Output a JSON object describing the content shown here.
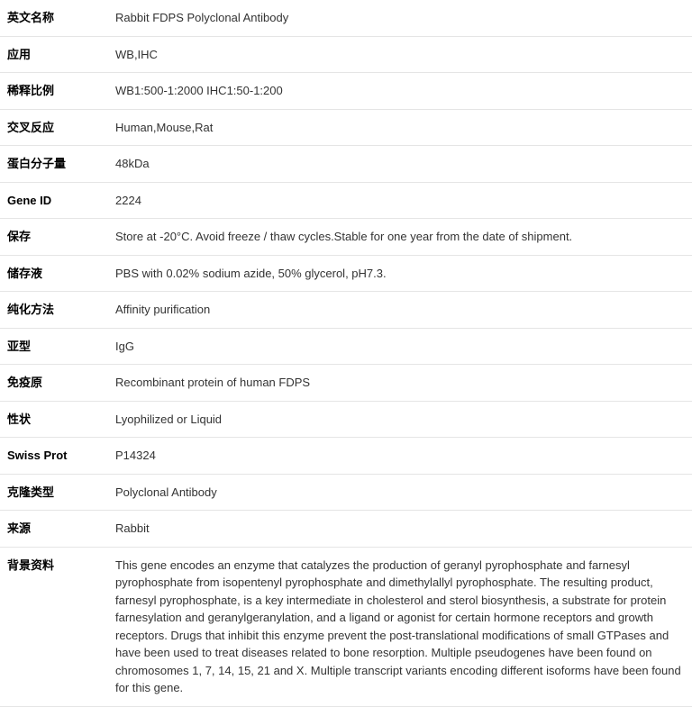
{
  "rows": [
    {
      "label": "英文名称",
      "value": "Rabbit FDPS Polyclonal Antibody"
    },
    {
      "label": "应用",
      "value": "WB,IHC"
    },
    {
      "label": "稀释比例",
      "value": "WB1:500-1:2000 IHC1:50-1:200"
    },
    {
      "label": "交叉反应",
      "value": "Human,Mouse,Rat"
    },
    {
      "label": "蛋白分子量",
      "value": "48kDa"
    },
    {
      "label": "Gene ID",
      "value": "2224"
    },
    {
      "label": "保存",
      "value": "Store at -20°C. Avoid freeze / thaw cycles.Stable for one year from the date of shipment."
    },
    {
      "label": "储存液",
      "value": "PBS with 0.02% sodium azide, 50% glycerol, pH7.3."
    },
    {
      "label": "纯化方法",
      "value": "Affinity purification"
    },
    {
      "label": "亚型",
      "value": "IgG"
    },
    {
      "label": "免疫原",
      "value": "Recombinant protein of human FDPS"
    },
    {
      "label": "性状",
      "value": "Lyophilized or Liquid"
    },
    {
      "label": "Swiss Prot",
      "value": "P14324"
    },
    {
      "label": "克隆类型",
      "value": "Polyclonal Antibody"
    },
    {
      "label": "来源",
      "value": "Rabbit"
    },
    {
      "label": "背景资料",
      "value": "This gene encodes an enzyme that catalyzes the production of geranyl pyrophosphate and farnesyl pyrophosphate from isopentenyl pyrophosphate and dimethylallyl pyrophosphate. The resulting product, farnesyl pyrophosphate, is a key intermediate in cholesterol and sterol biosynthesis, a substrate for protein farnesylation and geranylgeranylation, and a ligand or agonist for certain hormone receptors and growth receptors. Drugs that inhibit this enzyme prevent the post-translational modifications of small GTPases and have been used to treat diseases related to bone resorption. Multiple pseudogenes have been found on chromosomes 1, 7, 14, 15, 21 and X. Multiple transcript variants encoding different isoforms have been found for this gene."
    }
  ]
}
